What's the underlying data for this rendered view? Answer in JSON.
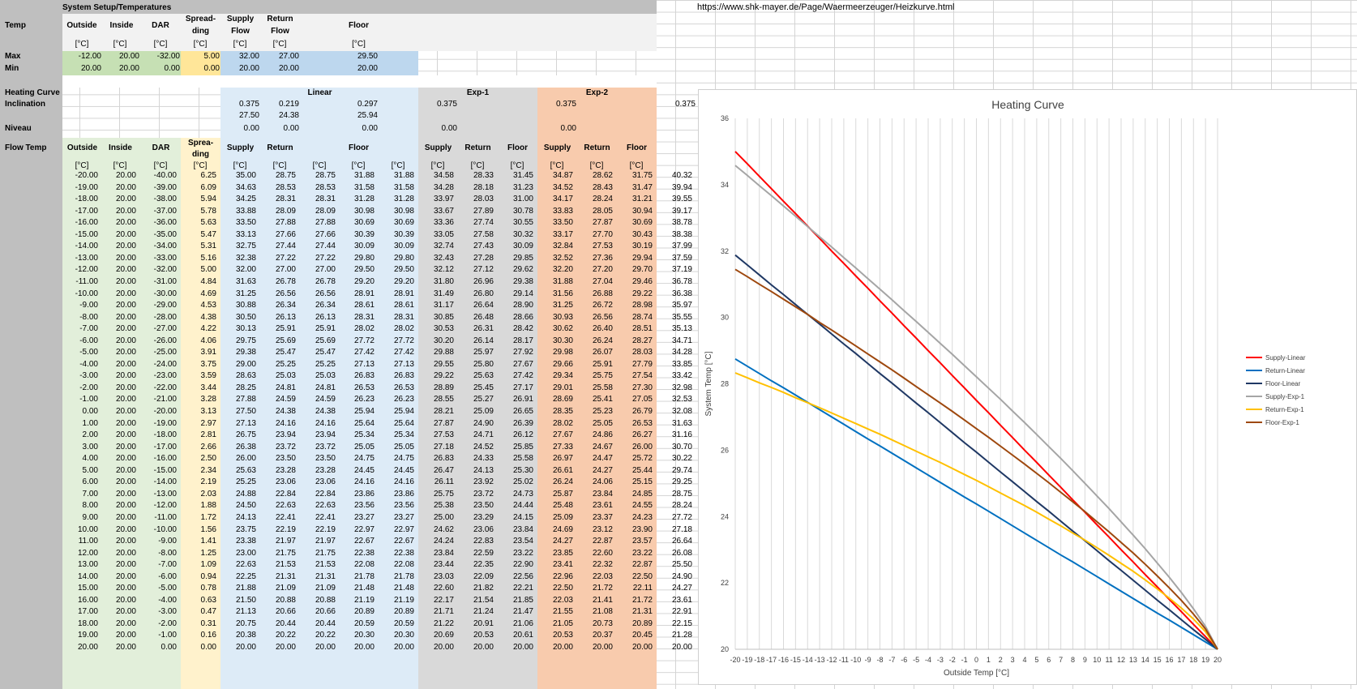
{
  "url": "https://www.shk-mayer.de/Page/Waermeerzeuger/Heizkurve.html",
  "colors": {
    "gray_header": "#bfbfbf",
    "light_gray": "#f2f2f2",
    "green": "#e2efda",
    "green_strong": "#c6e0b4",
    "yellow": "#fff2cc",
    "yellow_strong": "#ffe699",
    "blue": "#ddebf7",
    "blue_strong": "#bdd7ee",
    "exp1": "#d9d9d9",
    "exp2": "#f8cbad"
  },
  "setup": {
    "title": "System Setup/Temperatures",
    "temp_label": "Temp",
    "col_outside": "Outside",
    "col_inside": "Inside",
    "col_dar": "DAR",
    "col_spreading_1": "Spread-",
    "col_spreading_2": "ding",
    "col_supply_1": "Supply",
    "col_supply_2": "Flow",
    "col_return_1": "Return",
    "col_return_2": "Flow",
    "col_floor": "Floor",
    "unit": "[°C]",
    "max_label": "Max",
    "min_label": "Min",
    "max": [
      "-12.00",
      "20.00",
      "-32.00",
      "5.00",
      "32.00",
      "27.00",
      "29.50"
    ],
    "min": [
      "20.00",
      "20.00",
      "0.00",
      "0.00",
      "20.00",
      "20.00",
      "20.00"
    ]
  },
  "curve": {
    "heating_curve_label": "Heating Curve",
    "inclination_label": "Inclination",
    "niveau_label": "Niveau",
    "linear_label": "Linear",
    "exp1_label": "Exp-1",
    "exp2_label": "Exp-2",
    "incl_linear_1": [
      "0.375",
      "0.219",
      "0.297"
    ],
    "incl_linear_2": [
      "27.50",
      "24.38",
      "25.94"
    ],
    "incl_exp1": "0.375",
    "incl_exp2": "0.375",
    "incl_extra": "0.375",
    "niveau_linear": [
      "0.00",
      "0.00",
      "0.00"
    ],
    "niveau_exp1": "0.00",
    "niveau_exp2": "0.00"
  },
  "flow": {
    "label": "Flow Temp",
    "headers": [
      "Outside",
      "Inside",
      "DAR",
      "Sprea-|ding",
      "Supply",
      "Return",
      "",
      "Floor",
      "",
      "Supply",
      "Return",
      "Floor",
      "Supply",
      "Return",
      "Floor"
    ],
    "rows": [
      [
        "-20.00",
        "20.00",
        "-40.00",
        "6.25",
        "35.00",
        "28.75",
        "28.75",
        "31.88",
        "31.88",
        "34.58",
        "28.33",
        "31.45",
        "34.87",
        "28.62",
        "31.75",
        "40.32"
      ],
      [
        "-19.00",
        "20.00",
        "-39.00",
        "6.09",
        "34.63",
        "28.53",
        "28.53",
        "31.58",
        "31.58",
        "34.28",
        "28.18",
        "31.23",
        "34.52",
        "28.43",
        "31.47",
        "39.94"
      ],
      [
        "-18.00",
        "20.00",
        "-38.00",
        "5.94",
        "34.25",
        "28.31",
        "28.31",
        "31.28",
        "31.28",
        "33.97",
        "28.03",
        "31.00",
        "34.17",
        "28.24",
        "31.21",
        "39.55"
      ],
      [
        "-17.00",
        "20.00",
        "-37.00",
        "5.78",
        "33.88",
        "28.09",
        "28.09",
        "30.98",
        "30.98",
        "33.67",
        "27.89",
        "30.78",
        "33.83",
        "28.05",
        "30.94",
        "39.17"
      ],
      [
        "-16.00",
        "20.00",
        "-36.00",
        "5.63",
        "33.50",
        "27.88",
        "27.88",
        "30.69",
        "30.69",
        "33.36",
        "27.74",
        "30.55",
        "33.50",
        "27.87",
        "30.69",
        "38.78"
      ],
      [
        "-15.00",
        "20.00",
        "-35.00",
        "5.47",
        "33.13",
        "27.66",
        "27.66",
        "30.39",
        "30.39",
        "33.05",
        "27.58",
        "30.32",
        "33.17",
        "27.70",
        "30.43",
        "38.38"
      ],
      [
        "-14.00",
        "20.00",
        "-34.00",
        "5.31",
        "32.75",
        "27.44",
        "27.44",
        "30.09",
        "30.09",
        "32.74",
        "27.43",
        "30.09",
        "32.84",
        "27.53",
        "30.19",
        "37.99"
      ],
      [
        "-13.00",
        "20.00",
        "-33.00",
        "5.16",
        "32.38",
        "27.22",
        "27.22",
        "29.80",
        "29.80",
        "32.43",
        "27.28",
        "29.85",
        "32.52",
        "27.36",
        "29.94",
        "37.59"
      ],
      [
        "-12.00",
        "20.00",
        "-32.00",
        "5.00",
        "32.00",
        "27.00",
        "27.00",
        "29.50",
        "29.50",
        "32.12",
        "27.12",
        "29.62",
        "32.20",
        "27.20",
        "29.70",
        "37.19"
      ],
      [
        "-11.00",
        "20.00",
        "-31.00",
        "4.84",
        "31.63",
        "26.78",
        "26.78",
        "29.20",
        "29.20",
        "31.80",
        "26.96",
        "29.38",
        "31.88",
        "27.04",
        "29.46",
        "36.78"
      ],
      [
        "-10.00",
        "20.00",
        "-30.00",
        "4.69",
        "31.25",
        "26.56",
        "26.56",
        "28.91",
        "28.91",
        "31.49",
        "26.80",
        "29.14",
        "31.56",
        "26.88",
        "29.22",
        "36.38"
      ],
      [
        "-9.00",
        "20.00",
        "-29.00",
        "4.53",
        "30.88",
        "26.34",
        "26.34",
        "28.61",
        "28.61",
        "31.17",
        "26.64",
        "28.90",
        "31.25",
        "26.72",
        "28.98",
        "35.97"
      ],
      [
        "-8.00",
        "20.00",
        "-28.00",
        "4.38",
        "30.50",
        "26.13",
        "26.13",
        "28.31",
        "28.31",
        "30.85",
        "26.48",
        "28.66",
        "30.93",
        "26.56",
        "28.74",
        "35.55"
      ],
      [
        "-7.00",
        "20.00",
        "-27.00",
        "4.22",
        "30.13",
        "25.91",
        "25.91",
        "28.02",
        "28.02",
        "30.53",
        "26.31",
        "28.42",
        "30.62",
        "26.40",
        "28.51",
        "35.13"
      ],
      [
        "-6.00",
        "20.00",
        "-26.00",
        "4.06",
        "29.75",
        "25.69",
        "25.69",
        "27.72",
        "27.72",
        "30.20",
        "26.14",
        "28.17",
        "30.30",
        "26.24",
        "28.27",
        "34.71"
      ],
      [
        "-5.00",
        "20.00",
        "-25.00",
        "3.91",
        "29.38",
        "25.47",
        "25.47",
        "27.42",
        "27.42",
        "29.88",
        "25.97",
        "27.92",
        "29.98",
        "26.07",
        "28.03",
        "34.28"
      ],
      [
        "-4.00",
        "20.00",
        "-24.00",
        "3.75",
        "29.00",
        "25.25",
        "25.25",
        "27.13",
        "27.13",
        "29.55",
        "25.80",
        "27.67",
        "29.66",
        "25.91",
        "27.79",
        "33.85"
      ],
      [
        "-3.00",
        "20.00",
        "-23.00",
        "3.59",
        "28.63",
        "25.03",
        "25.03",
        "26.83",
        "26.83",
        "29.22",
        "25.63",
        "27.42",
        "29.34",
        "25.75",
        "27.54",
        "33.42"
      ],
      [
        "-2.00",
        "20.00",
        "-22.00",
        "3.44",
        "28.25",
        "24.81",
        "24.81",
        "26.53",
        "26.53",
        "28.89",
        "25.45",
        "27.17",
        "29.01",
        "25.58",
        "27.30",
        "32.98"
      ],
      [
        "-1.00",
        "20.00",
        "-21.00",
        "3.28",
        "27.88",
        "24.59",
        "24.59",
        "26.23",
        "26.23",
        "28.55",
        "25.27",
        "26.91",
        "28.69",
        "25.41",
        "27.05",
        "32.53"
      ],
      [
        "0.00",
        "20.00",
        "-20.00",
        "3.13",
        "27.50",
        "24.38",
        "24.38",
        "25.94",
        "25.94",
        "28.21",
        "25.09",
        "26.65",
        "28.35",
        "25.23",
        "26.79",
        "32.08"
      ],
      [
        "1.00",
        "20.00",
        "-19.00",
        "2.97",
        "27.13",
        "24.16",
        "24.16",
        "25.64",
        "25.64",
        "27.87",
        "24.90",
        "26.39",
        "28.02",
        "25.05",
        "26.53",
        "31.63"
      ],
      [
        "2.00",
        "20.00",
        "-18.00",
        "2.81",
        "26.75",
        "23.94",
        "23.94",
        "25.34",
        "25.34",
        "27.53",
        "24.71",
        "26.12",
        "27.67",
        "24.86",
        "26.27",
        "31.16"
      ],
      [
        "3.00",
        "20.00",
        "-17.00",
        "2.66",
        "26.38",
        "23.72",
        "23.72",
        "25.05",
        "25.05",
        "27.18",
        "24.52",
        "25.85",
        "27.33",
        "24.67",
        "26.00",
        "30.70"
      ],
      [
        "4.00",
        "20.00",
        "-16.00",
        "2.50",
        "26.00",
        "23.50",
        "23.50",
        "24.75",
        "24.75",
        "26.83",
        "24.33",
        "25.58",
        "26.97",
        "24.47",
        "25.72",
        "30.22"
      ],
      [
        "5.00",
        "20.00",
        "-15.00",
        "2.34",
        "25.63",
        "23.28",
        "23.28",
        "24.45",
        "24.45",
        "26.47",
        "24.13",
        "25.30",
        "26.61",
        "24.27",
        "25.44",
        "29.74"
      ],
      [
        "6.00",
        "20.00",
        "-14.00",
        "2.19",
        "25.25",
        "23.06",
        "23.06",
        "24.16",
        "24.16",
        "26.11",
        "23.92",
        "25.02",
        "26.24",
        "24.06",
        "25.15",
        "29.25"
      ],
      [
        "7.00",
        "20.00",
        "-13.00",
        "2.03",
        "24.88",
        "22.84",
        "22.84",
        "23.86",
        "23.86",
        "25.75",
        "23.72",
        "24.73",
        "25.87",
        "23.84",
        "24.85",
        "28.75"
      ],
      [
        "8.00",
        "20.00",
        "-12.00",
        "1.88",
        "24.50",
        "22.63",
        "22.63",
        "23.56",
        "23.56",
        "25.38",
        "23.50",
        "24.44",
        "25.48",
        "23.61",
        "24.55",
        "28.24"
      ],
      [
        "9.00",
        "20.00",
        "-11.00",
        "1.72",
        "24.13",
        "22.41",
        "22.41",
        "23.27",
        "23.27",
        "25.00",
        "23.29",
        "24.15",
        "25.09",
        "23.37",
        "24.23",
        "27.72"
      ],
      [
        "10.00",
        "20.00",
        "-10.00",
        "1.56",
        "23.75",
        "22.19",
        "22.19",
        "22.97",
        "22.97",
        "24.62",
        "23.06",
        "23.84",
        "24.69",
        "23.12",
        "23.90",
        "27.18"
      ],
      [
        "11.00",
        "20.00",
        "-9.00",
        "1.41",
        "23.38",
        "21.97",
        "21.97",
        "22.67",
        "22.67",
        "24.24",
        "22.83",
        "23.54",
        "24.27",
        "22.87",
        "23.57",
        "26.64"
      ],
      [
        "12.00",
        "20.00",
        "-8.00",
        "1.25",
        "23.00",
        "21.75",
        "21.75",
        "22.38",
        "22.38",
        "23.84",
        "22.59",
        "23.22",
        "23.85",
        "22.60",
        "23.22",
        "26.08"
      ],
      [
        "13.00",
        "20.00",
        "-7.00",
        "1.09",
        "22.63",
        "21.53",
        "21.53",
        "22.08",
        "22.08",
        "23.44",
        "22.35",
        "22.90",
        "23.41",
        "22.32",
        "22.87",
        "25.50"
      ],
      [
        "14.00",
        "20.00",
        "-6.00",
        "0.94",
        "22.25",
        "21.31",
        "21.31",
        "21.78",
        "21.78",
        "23.03",
        "22.09",
        "22.56",
        "22.96",
        "22.03",
        "22.50",
        "24.90"
      ],
      [
        "15.00",
        "20.00",
        "-5.00",
        "0.78",
        "21.88",
        "21.09",
        "21.09",
        "21.48",
        "21.48",
        "22.60",
        "21.82",
        "22.21",
        "22.50",
        "21.72",
        "22.11",
        "24.27"
      ],
      [
        "16.00",
        "20.00",
        "-4.00",
        "0.63",
        "21.50",
        "20.88",
        "20.88",
        "21.19",
        "21.19",
        "22.17",
        "21.54",
        "21.85",
        "22.03",
        "21.41",
        "21.72",
        "23.61"
      ],
      [
        "17.00",
        "20.00",
        "-3.00",
        "0.47",
        "21.13",
        "20.66",
        "20.66",
        "20.89",
        "20.89",
        "21.71",
        "21.24",
        "21.47",
        "21.55",
        "21.08",
        "21.31",
        "22.91"
      ],
      [
        "18.00",
        "20.00",
        "-2.00",
        "0.31",
        "20.75",
        "20.44",
        "20.44",
        "20.59",
        "20.59",
        "21.22",
        "20.91",
        "21.06",
        "21.05",
        "20.73",
        "20.89",
        "22.15"
      ],
      [
        "19.00",
        "20.00",
        "-1.00",
        "0.16",
        "20.38",
        "20.22",
        "20.22",
        "20.30",
        "20.30",
        "20.69",
        "20.53",
        "20.61",
        "20.53",
        "20.37",
        "20.45",
        "21.28"
      ],
      [
        "20.00",
        "20.00",
        "0.00",
        "0.00",
        "20.00",
        "20.00",
        "20.00",
        "20.00",
        "20.00",
        "20.00",
        "20.00",
        "20.00",
        "20.00",
        "20.00",
        "20.00",
        "20.00"
      ]
    ]
  },
  "chart_data": {
    "type": "line",
    "title": "Heating Curve",
    "xlabel": "Outside Temp [°C]",
    "ylabel": "System Temp [°C]",
    "xlim": [
      -20,
      20
    ],
    "ylim": [
      20,
      36
    ],
    "yticks": [
      20,
      22,
      24,
      26,
      28,
      30,
      32,
      34,
      36
    ],
    "grid": "vertical",
    "legend": "right",
    "x": [
      -20,
      -19,
      -18,
      -17,
      -16,
      -15,
      -14,
      -13,
      -12,
      -11,
      -10,
      -9,
      -8,
      -7,
      -6,
      -5,
      -4,
      -3,
      -2,
      -1,
      0,
      1,
      2,
      3,
      4,
      5,
      6,
      7,
      8,
      9,
      10,
      11,
      12,
      13,
      14,
      15,
      16,
      17,
      18,
      19,
      20
    ],
    "series": [
      {
        "name": "Supply-Linear",
        "color": "#ff0000",
        "col": 4
      },
      {
        "name": "Return-Linear",
        "color": "#0070c0",
        "col": 5
      },
      {
        "name": "Floor-Linear",
        "color": "#1f3864",
        "col": 7
      },
      {
        "name": "Supply-Exp-1",
        "color": "#a5a5a5",
        "col": 9
      },
      {
        "name": "Return-Exp-1",
        "color": "#ffc000",
        "col": 10
      },
      {
        "name": "Floor-Exp-1",
        "color": "#9e480e",
        "col": 11
      }
    ]
  }
}
